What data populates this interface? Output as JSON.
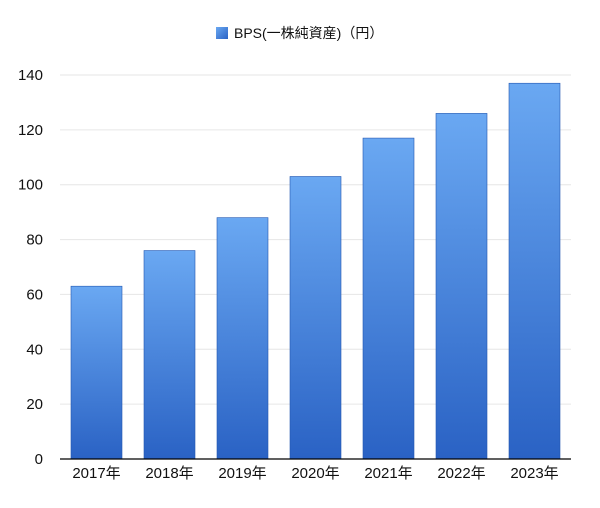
{
  "chart_data": {
    "type": "bar",
    "categories": [
      "2017年",
      "2018年",
      "2019年",
      "2020年",
      "2021年",
      "2022年",
      "2023年"
    ],
    "series": [
      {
        "name": "BPS(一株純資産)（円）",
        "values": [
          63,
          76,
          88,
          103,
          117,
          126,
          137
        ]
      }
    ],
    "ylim": [
      0,
      140
    ],
    "yticks": [
      0,
      20,
      40,
      60,
      80,
      100,
      120,
      140
    ],
    "grid": true,
    "legend_position": "top-center",
    "colors": {
      "bar_top": "#6aa8f2",
      "bar_bottom": "#2a62c4",
      "bar_edge": "#2457b0",
      "grid": "#e6e6e6",
      "axis": "#000000"
    }
  }
}
